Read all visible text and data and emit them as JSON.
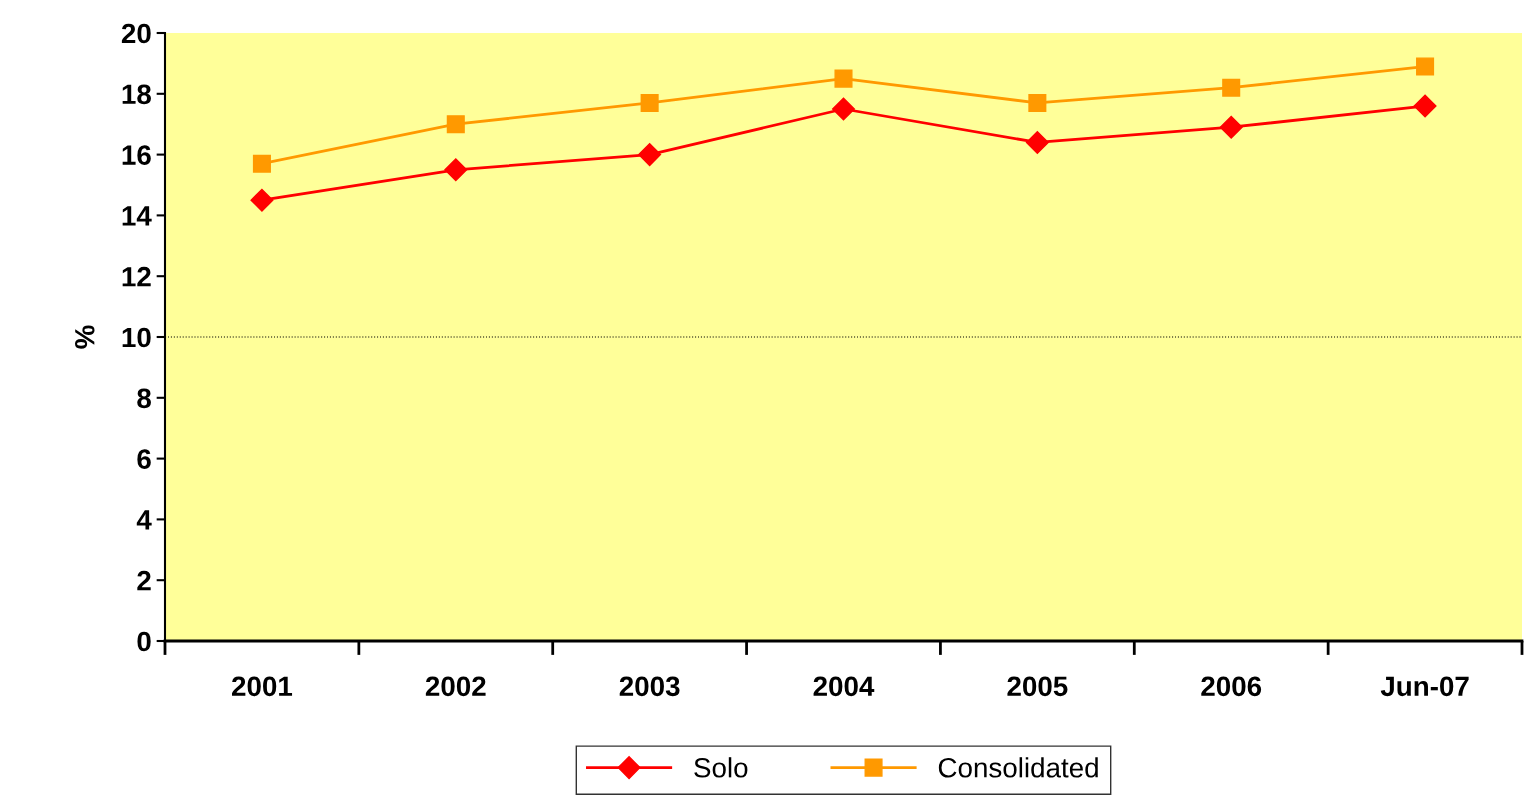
{
  "chart_data": {
    "type": "line",
    "ylabel": "%",
    "categories": [
      "2001",
      "2002",
      "2003",
      "2004",
      "2005",
      "2006",
      "Jun-07"
    ],
    "series": [
      {
        "name": "Solo",
        "color": "#ff0000",
        "marker": "diamond",
        "values": [
          14.5,
          15.5,
          16.0,
          17.5,
          16.4,
          16.9,
          17.6
        ]
      },
      {
        "name": "Consolidated",
        "color": "#ff9900",
        "marker": "square",
        "values": [
          15.7,
          17.0,
          17.7,
          18.5,
          17.7,
          18.2,
          18.9
        ]
      }
    ],
    "ylim": [
      0,
      20
    ],
    "yticks": [
      0,
      2,
      4,
      6,
      8,
      10,
      12,
      14,
      16,
      18,
      20
    ],
    "ref_lines": [
      {
        "axis": "y",
        "value": 10,
        "color": "#000000",
        "line_style": "dotted"
      }
    ],
    "grid": false,
    "legend": "bottom",
    "line_style": "solid"
  }
}
